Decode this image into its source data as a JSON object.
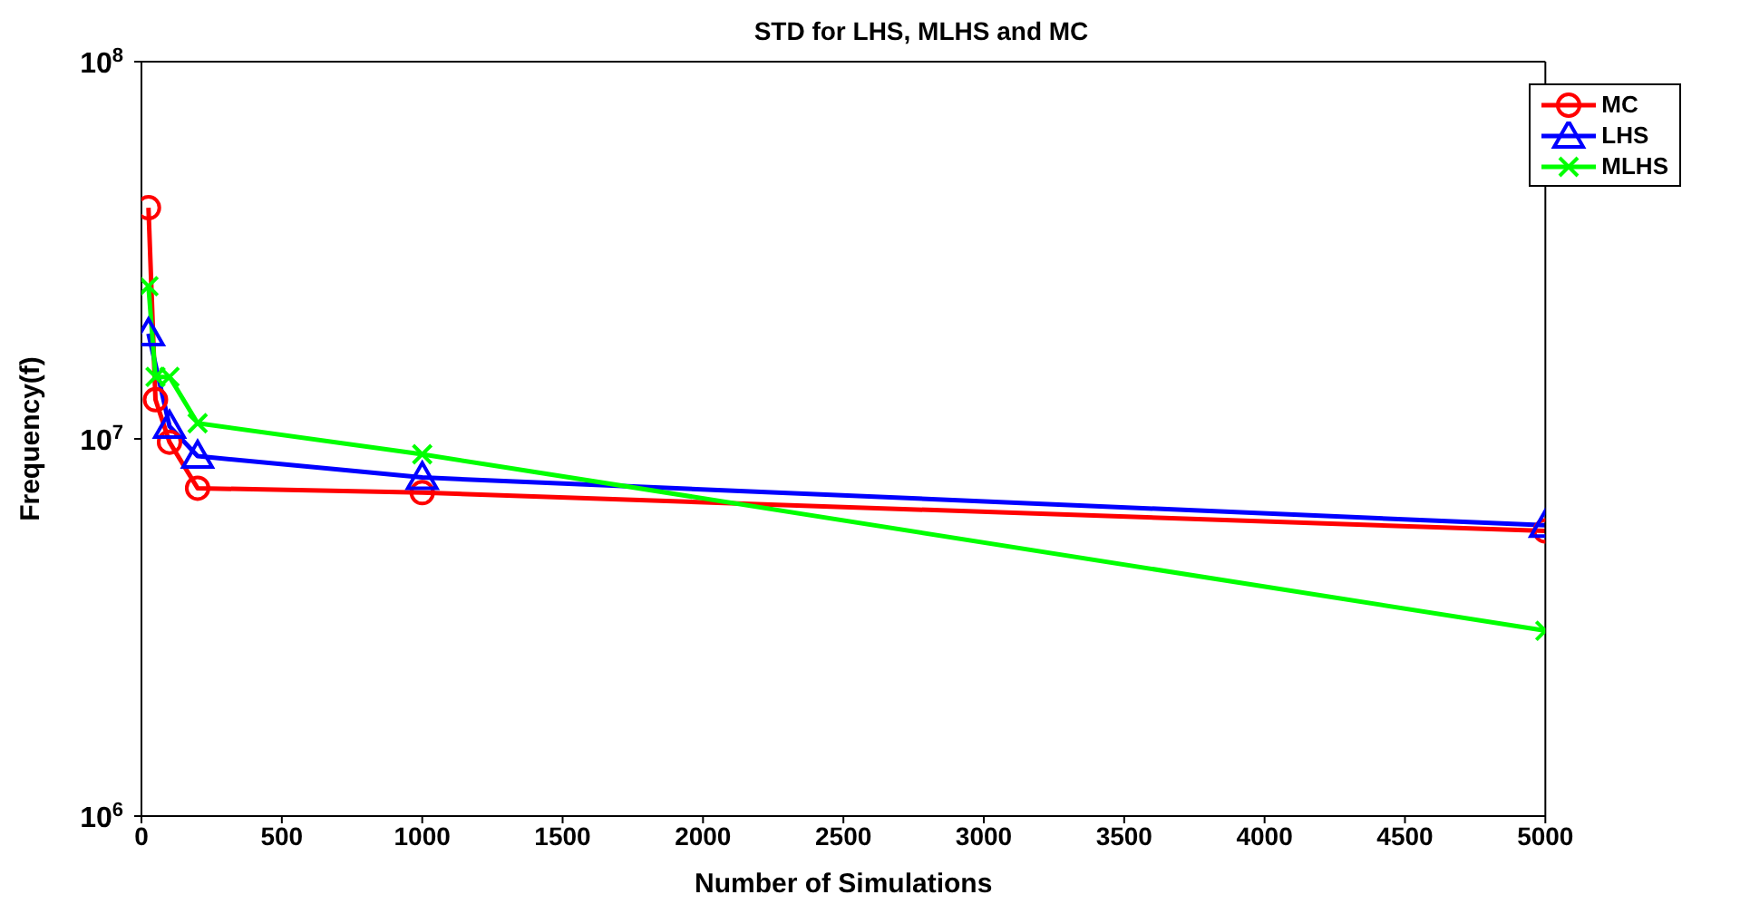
{
  "chart_data": {
    "type": "line",
    "title": "STD for LHS, MLHS and MC",
    "xlabel": "Number of Simulations",
    "ylabel": "Frequency(f)",
    "log": "y",
    "grid": false,
    "legend": "top right",
    "xlim": [
      0,
      5000
    ],
    "xticks": [
      0,
      500,
      1000,
      1500,
      2000,
      2500,
      3000,
      3500,
      4000,
      4500,
      5000
    ],
    "ylim": [
      1000000,
      100000000
    ],
    "yticks": [
      {
        "value": 1000000,
        "label": "10$^{6}$"
      },
      {
        "value": 10000000,
        "label": "10$^{7}$"
      },
      {
        "value": 100000000,
        "label": "10$^{8}$"
      }
    ],
    "series": [
      {
        "name": "MC",
        "color": "#ff0000",
        "marker": "circle",
        "x": [
          25,
          50,
          100,
          200,
          1000,
          5000
        ],
        "values": [
          41000000,
          12700000,
          9800000,
          7400000,
          7200000,
          5700000
        ]
      },
      {
        "name": "LHS",
        "color": "#0000ff",
        "marker": "triangle",
        "x": [
          25,
          100,
          200,
          1000,
          5000
        ],
        "values": [
          19000000,
          10800000,
          9000000,
          7900000,
          5900000
        ]
      },
      {
        "name": "MLHS",
        "color": "#00ff00",
        "marker": "cross",
        "x": [
          25,
          50,
          100,
          200,
          1000,
          5000
        ],
        "values": [
          25400000,
          14600000,
          14600000,
          11000000,
          9100000,
          3100000
        ]
      }
    ]
  }
}
